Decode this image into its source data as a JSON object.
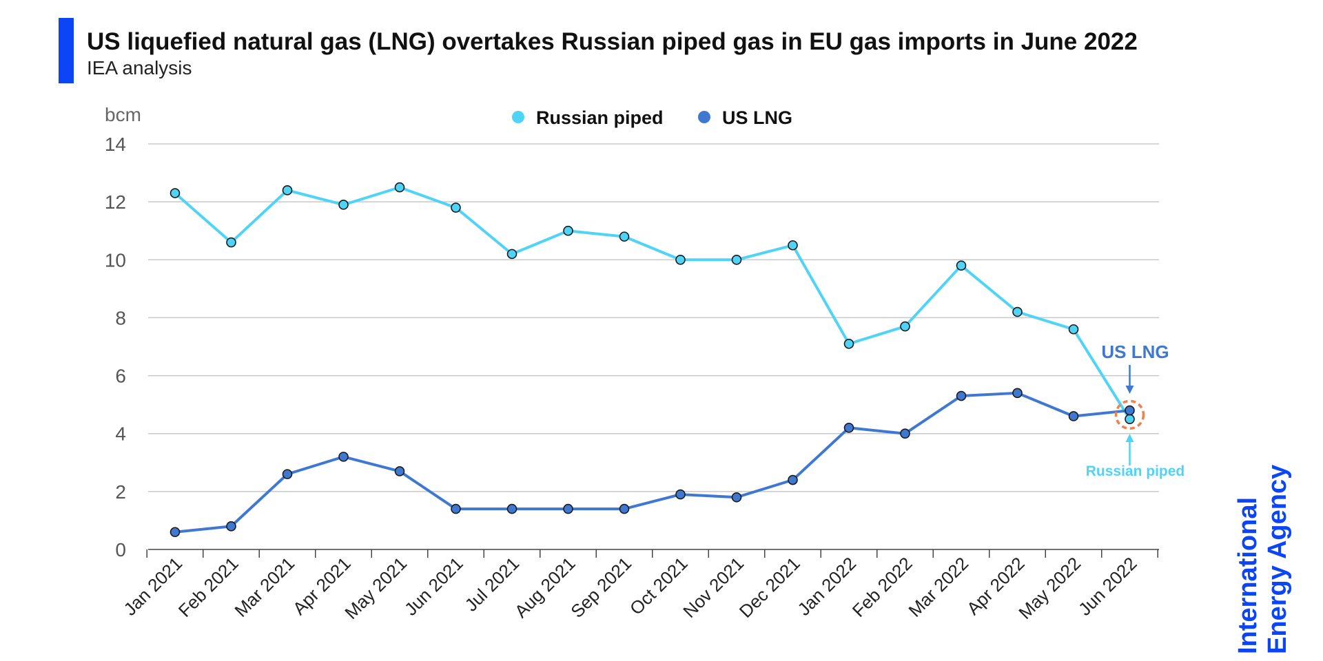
{
  "header": {
    "title": "US liquefied natural gas (LNG) overtakes Russian piped gas in EU gas imports in June 2022",
    "subtitle": "IEA analysis"
  },
  "logo": {
    "line1": "International",
    "line2": "Energy Agency"
  },
  "colors": {
    "accent_bar": "#0b45f5",
    "russian": "#4fd3f7",
    "lng": "#3f78d0",
    "highlight": "#f08050"
  },
  "chart_data": {
    "type": "line",
    "ylabel": "bcm",
    "ylim": [
      0,
      14
    ],
    "yticks": [
      0,
      2,
      4,
      6,
      8,
      10,
      12,
      14
    ],
    "grid": true,
    "legend_position": "top-center",
    "categories": [
      "Jan 2021",
      "Feb 2021",
      "Mar 2021",
      "Apr 2021",
      "May 2021",
      "Jun 2021",
      "Jul 2021",
      "Aug 2021",
      "Sep 2021",
      "Oct 2021",
      "Nov 2021",
      "Dec 2021",
      "Jan 2022",
      "Feb 2022",
      "Mar 2022",
      "Apr 2022",
      "May 2022",
      "Jun 2022"
    ],
    "series": [
      {
        "name": "Russian piped",
        "values": [
          12.3,
          10.6,
          12.4,
          11.9,
          12.5,
          11.8,
          10.2,
          11.0,
          10.8,
          10.0,
          10.0,
          10.5,
          7.1,
          7.7,
          9.8,
          8.2,
          7.6,
          4.5
        ]
      },
      {
        "name": "US LNG",
        "values": [
          0.6,
          0.8,
          2.6,
          3.2,
          2.7,
          1.4,
          1.4,
          1.4,
          1.4,
          1.9,
          1.8,
          2.4,
          4.2,
          4.0,
          5.3,
          5.4,
          4.6,
          4.8
        ]
      }
    ],
    "annotations": [
      {
        "text": "US LNG",
        "series": "US LNG",
        "category": "Jun 2022"
      },
      {
        "text": "Russian piped",
        "series": "Russian piped",
        "category": "Jun 2022"
      }
    ]
  }
}
